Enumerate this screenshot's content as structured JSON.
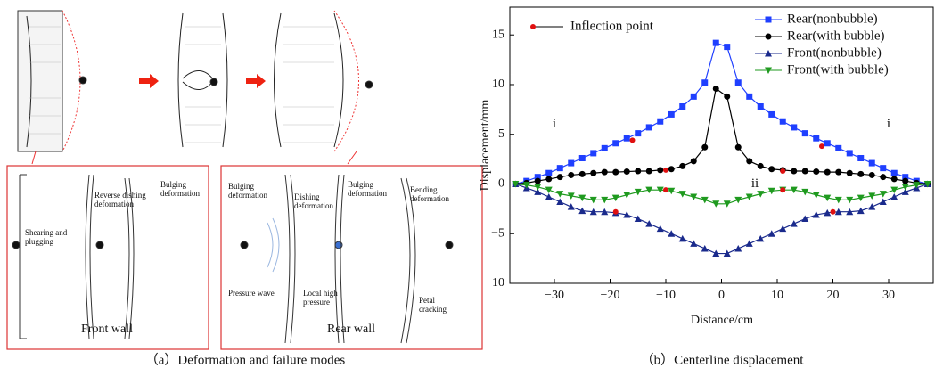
{
  "diagram": {
    "caption": "（a）Deformation and failure modes",
    "front_panel": {
      "title": "Front wall",
      "labels": [
        [
          "Shearing and",
          "plugging"
        ],
        [
          "Reverse dishing",
          "deformation"
        ],
        [
          "Bulging",
          "deformation"
        ]
      ]
    },
    "rear_panel": {
      "title": "Rear wall",
      "labels": [
        [
          "Bulging",
          "deformation"
        ],
        [
          "Dishing",
          "deformation"
        ],
        [
          "Bulging",
          "deformation"
        ],
        [
          "Bending",
          "deformation"
        ],
        [
          "Pressure wave"
        ],
        [
          "Local high",
          "pressure"
        ],
        [
          "Petal",
          "cracking"
        ]
      ]
    }
  },
  "chart_data": {
    "type": "line",
    "caption": "（b）Centerline displacement",
    "x_label": "Distance/cm",
    "y_label": "Displacement/mm",
    "x": [
      -37,
      -35,
      -33,
      -31,
      -29,
      -27,
      -25,
      -23,
      -21,
      -19,
      -17,
      -15,
      -13,
      -11,
      -9,
      -7,
      -5,
      -3,
      -1,
      1,
      3,
      5,
      7,
      9,
      11,
      13,
      15,
      17,
      19,
      21,
      23,
      25,
      27,
      29,
      31,
      33,
      35,
      37
    ],
    "series": [
      {
        "name": "Rear(nonbubble)",
        "color": "#1f3fff",
        "marker": "square",
        "values": [
          0.0,
          0.3,
          0.7,
          1.1,
          1.6,
          2.1,
          2.6,
          3.1,
          3.6,
          4.1,
          4.6,
          5.1,
          5.7,
          6.3,
          7.0,
          7.8,
          8.8,
          10.2,
          14.2,
          13.8,
          10.2,
          8.8,
          7.8,
          7.0,
          6.3,
          5.7,
          5.1,
          4.6,
          4.1,
          3.6,
          3.1,
          2.6,
          2.1,
          1.6,
          1.1,
          0.7,
          0.3,
          0.0
        ]
      },
      {
        "name": "Rear(with bubble)",
        "color": "#000000",
        "marker": "circle",
        "values": [
          0.0,
          0.1,
          0.3,
          0.5,
          0.7,
          0.9,
          1.0,
          1.1,
          1.2,
          1.2,
          1.25,
          1.3,
          1.3,
          1.4,
          1.5,
          1.8,
          2.3,
          3.7,
          9.6,
          8.8,
          3.7,
          2.3,
          1.8,
          1.5,
          1.4,
          1.3,
          1.3,
          1.25,
          1.2,
          1.2,
          1.1,
          1.0,
          0.9,
          0.7,
          0.5,
          0.3,
          0.1,
          0.0
        ]
      },
      {
        "name": "Front(nonbubble)",
        "color": "#1a2a8c",
        "marker": "triangle-up",
        "values": [
          0,
          -0.4,
          -0.8,
          -1.3,
          -1.8,
          -2.3,
          -2.7,
          -2.8,
          -2.8,
          -2.9,
          -3.1,
          -3.5,
          -4.0,
          -4.5,
          -5.0,
          -5.5,
          -6.0,
          -6.5,
          -7.0,
          -7.0,
          -6.5,
          -6.0,
          -5.5,
          -5.0,
          -4.5,
          -4.0,
          -3.5,
          -3.1,
          -2.9,
          -2.8,
          -2.8,
          -2.7,
          -2.3,
          -1.8,
          -1.3,
          -0.8,
          -0.4,
          0
        ]
      },
      {
        "name": "Front(with bubble)",
        "color": "#1f9a1f",
        "marker": "triangle-down",
        "values": [
          0,
          -0.1,
          -0.3,
          -0.6,
          -1.0,
          -1.2,
          -1.4,
          -1.6,
          -1.6,
          -1.4,
          -1.1,
          -0.8,
          -0.6,
          -0.6,
          -0.7,
          -1.0,
          -1.3,
          -1.6,
          -2.0,
          -2.0,
          -1.6,
          -1.3,
          -1.0,
          -0.7,
          -0.6,
          -0.6,
          -0.8,
          -1.1,
          -1.4,
          -1.6,
          -1.6,
          -1.4,
          -1.2,
          -1.0,
          -0.6,
          -0.3,
          -0.1,
          0
        ]
      }
    ],
    "inflection": {
      "name": "Inflection point",
      "color": "#e01010",
      "x": [
        -16,
        18,
        -10,
        11,
        -19,
        20,
        -10,
        11
      ],
      "values": [
        4.4,
        3.8,
        1.4,
        1.3,
        -2.8,
        -2.8,
        -0.6,
        -0.6
      ]
    },
    "annotations": [
      {
        "text": "i",
        "x": -30,
        "y": 6
      },
      {
        "text": "i",
        "x": 30,
        "y": 6
      },
      {
        "text": "ii",
        "x": 6,
        "y": 0
      }
    ],
    "xlim": [
      -38,
      38
    ],
    "ylim": [
      -10,
      17.8
    ],
    "xticks": [
      {
        "value": -30,
        "label": "−30"
      },
      {
        "value": -20,
        "label": "−20"
      },
      {
        "value": -10,
        "label": "−10"
      },
      0,
      10,
      20,
      30
    ],
    "yticks": [
      {
        "value": -10,
        "label": "−10"
      },
      {
        "value": -5,
        "label": "−5"
      },
      0,
      5,
      10,
      15
    ],
    "legend": "upper right",
    "grid": false
  }
}
